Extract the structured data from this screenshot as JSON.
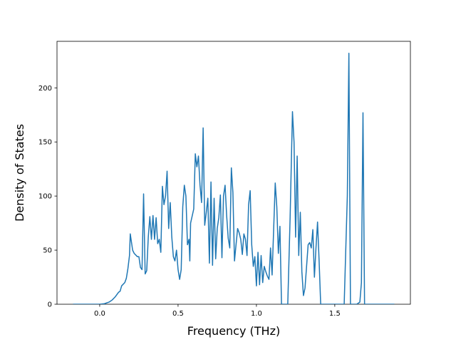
{
  "chart_data": {
    "type": "line",
    "xlabel": "Frequency (THz)",
    "ylabel": "Density of States",
    "color": "#1f77b4",
    "x": [
      -0.17,
      0.0,
      0.03,
      0.06,
      0.08,
      0.1,
      0.12,
      0.13,
      0.14,
      0.16,
      0.17,
      0.18,
      0.19,
      0.195,
      0.21,
      0.22,
      0.24,
      0.25,
      0.26,
      0.27,
      0.28,
      0.29,
      0.3,
      0.31,
      0.32,
      0.33,
      0.34,
      0.35,
      0.36,
      0.37,
      0.38,
      0.39,
      0.4,
      0.41,
      0.42,
      0.43,
      0.44,
      0.45,
      0.46,
      0.47,
      0.48,
      0.49,
      0.5,
      0.51,
      0.52,
      0.53,
      0.54,
      0.55,
      0.56,
      0.57,
      0.575,
      0.58,
      0.6,
      0.61,
      0.62,
      0.63,
      0.64,
      0.65,
      0.66,
      0.67,
      0.68,
      0.69,
      0.7,
      0.71,
      0.72,
      0.73,
      0.74,
      0.75,
      0.76,
      0.77,
      0.78,
      0.79,
      0.8,
      0.81,
      0.82,
      0.83,
      0.84,
      0.85,
      0.86,
      0.87,
      0.88,
      0.89,
      0.9,
      0.91,
      0.92,
      0.93,
      0.94,
      0.95,
      0.96,
      0.97,
      0.98,
      0.99,
      1.0,
      1.01,
      1.02,
      1.03,
      1.04,
      1.05,
      1.06,
      1.07,
      1.08,
      1.09,
      1.1,
      1.12,
      1.13,
      1.14,
      1.15,
      1.16,
      1.18,
      1.2,
      1.215,
      1.23,
      1.24,
      1.25,
      1.26,
      1.27,
      1.28,
      1.29,
      1.3,
      1.31,
      1.32,
      1.33,
      1.34,
      1.35,
      1.36,
      1.37,
      1.38,
      1.39,
      1.4,
      1.41,
      1.45,
      1.5,
      1.56,
      1.58,
      1.59,
      1.6,
      1.64,
      1.66,
      1.67,
      1.68,
      1.69,
      1.88
    ],
    "values": [
      0,
      0,
      0.5,
      2,
      4,
      7,
      11,
      12,
      17,
      20,
      24,
      33,
      45,
      65,
      50,
      47,
      44,
      44,
      34,
      32,
      102,
      28,
      31,
      62,
      81,
      60,
      82,
      60,
      80,
      56,
      60,
      48,
      109,
      92,
      100,
      123,
      70,
      94,
      62,
      44,
      40,
      50,
      32,
      23,
      32,
      90,
      110,
      100,
      55,
      60,
      40,
      75,
      88,
      139,
      127,
      137,
      110,
      94,
      163,
      73,
      85,
      98,
      38,
      113,
      36,
      98,
      42,
      70,
      80,
      101,
      43,
      100,
      110,
      82,
      61,
      52,
      126,
      103,
      40,
      55,
      70,
      66,
      60,
      46,
      65,
      60,
      45,
      92,
      105,
      55,
      35,
      44,
      17,
      48,
      18,
      45,
      20,
      35,
      30,
      26,
      23,
      52,
      27,
      112,
      90,
      47,
      72,
      0,
      0,
      0,
      80,
      178,
      150,
      62,
      137,
      45,
      85,
      30,
      8,
      15,
      35,
      55,
      57,
      52,
      69,
      25,
      52,
      76,
      40,
      0,
      0,
      0,
      0,
      100,
      232,
      0,
      0,
      2,
      20,
      177,
      0,
      0
    ],
    "xlim": [
      -0.2725,
      1.9825
    ],
    "xticks": [
      {
        "value": 0,
        "label": "0.0"
      },
      0.5,
      {
        "value": 1,
        "label": "1.0"
      },
      1.5
    ],
    "ylim": [
      0,
      243
    ],
    "yticks": [
      0,
      50,
      100,
      150,
      200
    ]
  }
}
